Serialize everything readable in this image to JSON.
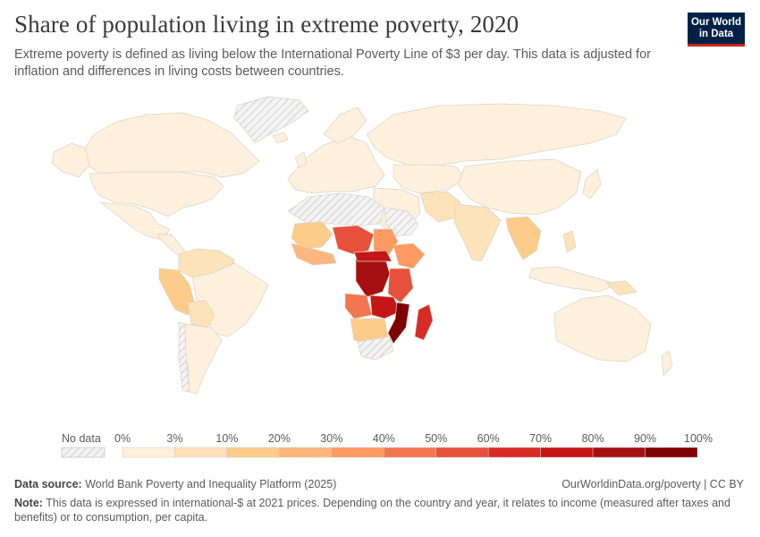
{
  "title": "Share of population living in extreme poverty, 2020",
  "subtitle": "Extreme poverty is defined as living below the International Poverty Line of $3 per day. This data is adjusted for inflation and differences in living costs between countries.",
  "logo": {
    "line1": "Our World",
    "line2": "in Data"
  },
  "legend": {
    "no_data_label": "No data",
    "ticks": [
      "0%",
      "3%",
      "10%",
      "20%",
      "30%",
      "40%",
      "50%",
      "60%",
      "70%",
      "80%",
      "90%",
      "100%"
    ],
    "colors": [
      "#fef0d9",
      "#fde3b9",
      "#fdcc8a",
      "#fdb67d",
      "#fc9a61",
      "#f3764e",
      "#e7503a",
      "#d92b25",
      "#c41616",
      "#a50f0f",
      "#7f0000"
    ],
    "no_data_color": "#ededed",
    "land_color": "#fdf0dc"
  },
  "footer": {
    "source_label": "Data source:",
    "source_text": "World Bank Poverty and Inequality Platform (2025)",
    "license": "OurWorldinData.org/poverty | CC BY",
    "note_label": "Note:",
    "note_text": "This data is expressed in international-$ at 2021 prices. Depending on the country and year, it relates to income (measured after taxes and benefits) or to consumption, per capita."
  }
}
